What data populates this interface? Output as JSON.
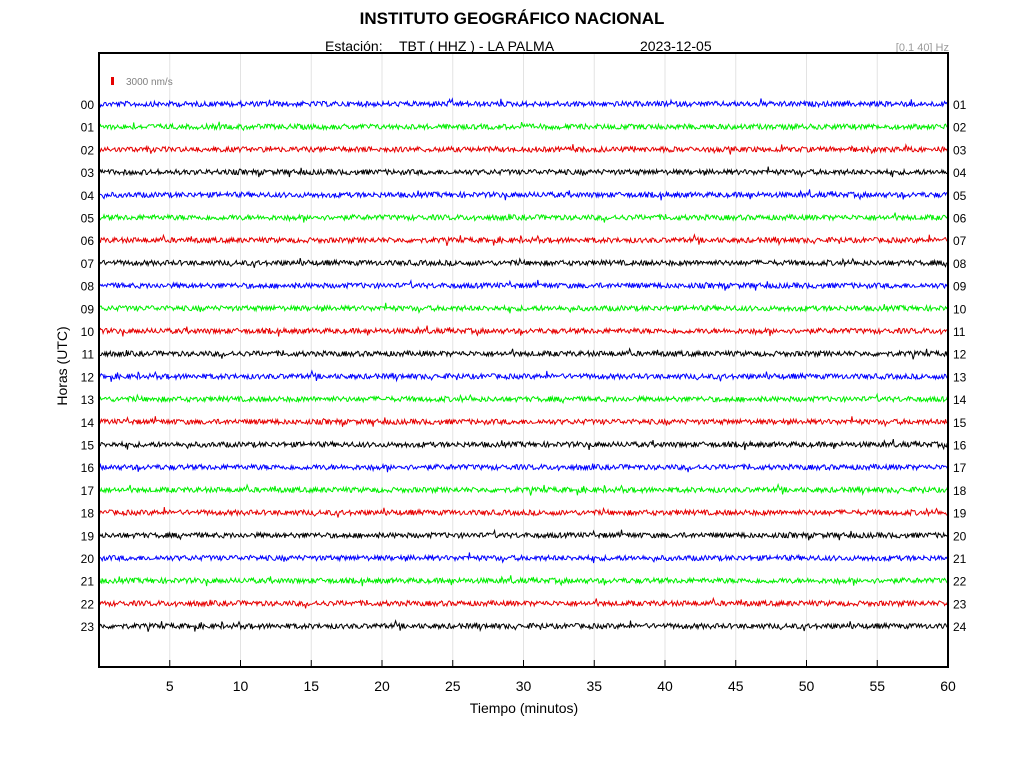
{
  "header": {
    "title": "INSTITUTO GEOGRÁFICO NACIONAL",
    "station_label": "Estación:",
    "station_value": "TBT ( HHZ ) - LA PALMA",
    "date": "2023-12-05",
    "filter": "[0.1 40] Hz"
  },
  "chart_data": {
    "type": "line",
    "title": "INSTITUTO GEOGRÁFICO NACIONAL",
    "xlabel": "Tiempo (minutos)",
    "ylabel": "Horas (UTC)",
    "xlim": [
      0,
      60
    ],
    "x_ticks": [
      "5",
      "10",
      "15",
      "20",
      "25",
      "30",
      "35",
      "40",
      "45",
      "50",
      "55",
      "60"
    ],
    "left_hour_labels": [
      "00",
      "01",
      "02",
      "03",
      "04",
      "05",
      "06",
      "07",
      "08",
      "09",
      "10",
      "11",
      "12",
      "13",
      "14",
      "15",
      "16",
      "17",
      "18",
      "19",
      "20",
      "21",
      "22",
      "23"
    ],
    "right_hour_labels": [
      "01",
      "02",
      "03",
      "04",
      "05",
      "06",
      "07",
      "08",
      "09",
      "10",
      "11",
      "12",
      "13",
      "14",
      "15",
      "16",
      "17",
      "18",
      "19",
      "20",
      "21",
      "22",
      "23",
      "24"
    ],
    "trace_color_cycle": [
      "#0000ff",
      "#00ee00",
      "#e60000",
      "#000000"
    ],
    "scale_bar": {
      "label": "3000 nm/s",
      "color": "#e60000"
    },
    "grid": true
  }
}
